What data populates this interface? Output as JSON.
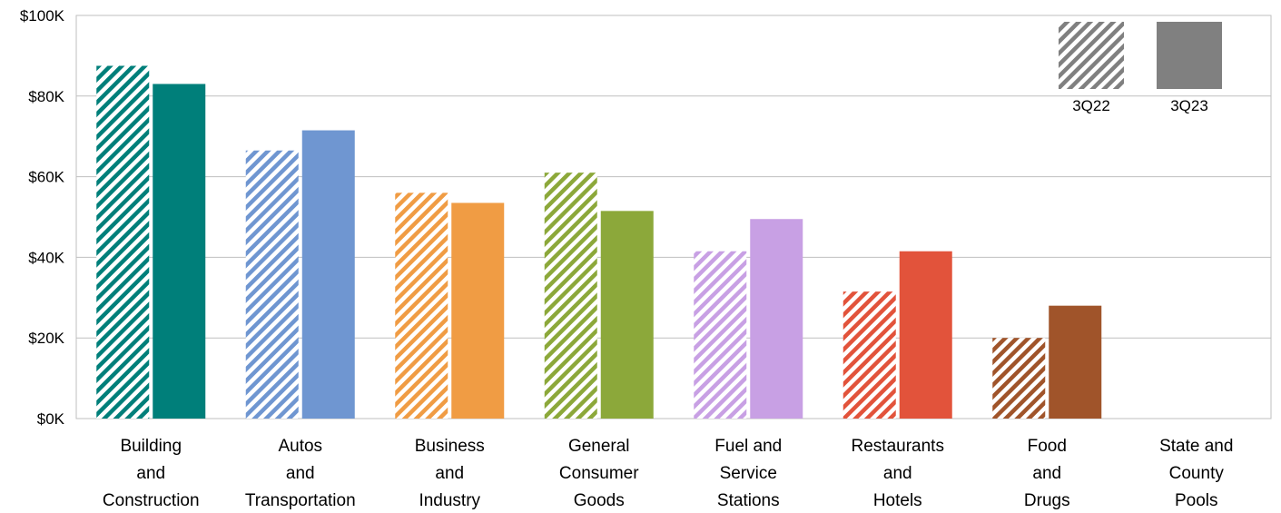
{
  "chart_data": {
    "type": "bar",
    "categories": [
      [
        "Building",
        "and",
        "Construction"
      ],
      [
        "Autos",
        "and",
        "Transportation"
      ],
      [
        "Business",
        "and",
        "Industry"
      ],
      [
        "General",
        "Consumer",
        "Goods"
      ],
      [
        "Fuel and",
        "Service",
        "Stations"
      ],
      [
        "Restaurants",
        "and",
        "Hotels"
      ],
      [
        "Food",
        "and",
        "Drugs"
      ],
      [
        "State and",
        "County",
        "Pools"
      ]
    ],
    "series": [
      {
        "name": "3Q22",
        "pattern": "hatched",
        "values": [
          87.5,
          66.5,
          56,
          61,
          41.5,
          31.5,
          20,
          0
        ]
      },
      {
        "name": "3Q23",
        "pattern": "solid",
        "values": [
          83,
          71.5,
          53.5,
          51.5,
          49.5,
          41.5,
          28,
          0
        ]
      }
    ],
    "category_colors": [
      "#007F7A",
      "#6F96D1",
      "#F09C44",
      "#8CA83A",
      "#C8A0E4",
      "#E2533B",
      "#A0542A",
      "#808080"
    ],
    "legend_color": "#808080",
    "yticks": [
      "$0K",
      "$20K",
      "$40K",
      "$60K",
      "$80K",
      "$100K"
    ],
    "ylim": [
      0,
      100
    ],
    "grid": true,
    "legend_position": "top-right"
  }
}
